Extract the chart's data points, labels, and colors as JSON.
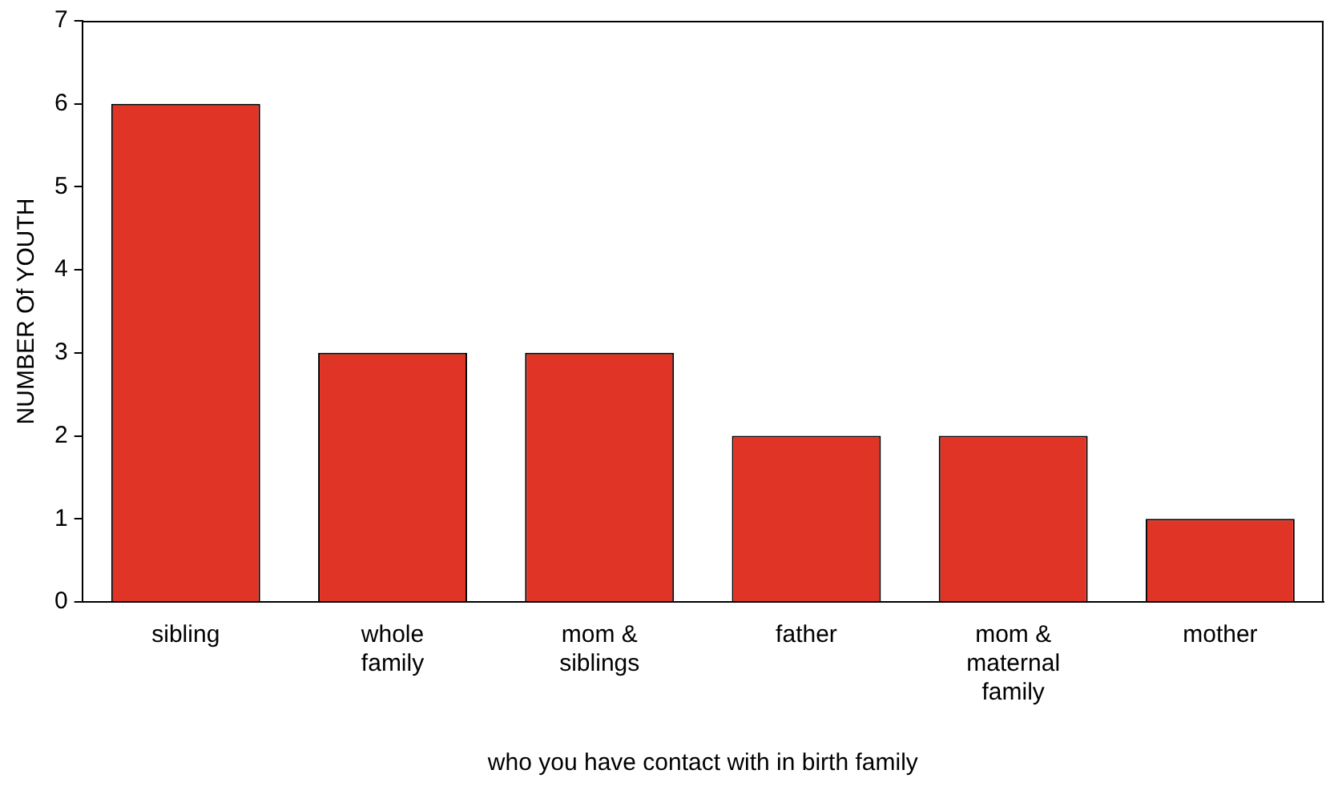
{
  "chart_data": {
    "type": "bar",
    "xlabel": "who you have contact with in birth family",
    "ylabel": "NUMBER Of YOUTH",
    "categories": [
      "sibling",
      "whole family",
      "mom & siblings",
      "father",
      "mom & maternal family",
      "mother"
    ],
    "values": [
      6,
      3,
      3,
      2,
      2,
      1
    ],
    "color": "#e03427",
    "ylim": [
      0,
      7
    ],
    "yticks": [
      0,
      1,
      2,
      3,
      4,
      5,
      6,
      7
    ],
    "grid": false,
    "legend": false
  }
}
